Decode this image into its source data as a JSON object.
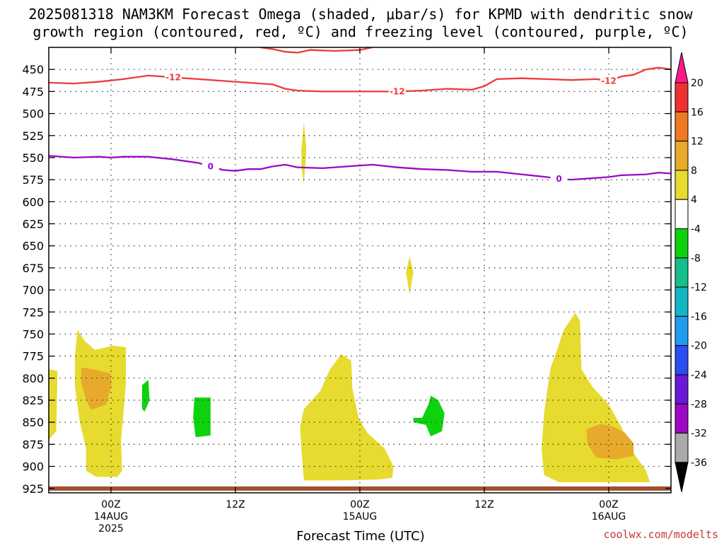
{
  "title_line1": "2025081318 NAM3KM Forecast Omega (shaded, μbar/s) for KPMD with dendritic snow",
  "title_line2": "growth region (contoured, red, ºC) and freezing level (contoured, purple, ºC)",
  "credit": "coolwx.com/modelts",
  "chart_data": {
    "type": "area",
    "xlabel": "Forecast Time (UTC)",
    "ylabel": "",
    "x_range_hours": [
      -5,
      45
    ],
    "y_range_hpa": [
      425,
      930
    ],
    "y_ticks": [
      450,
      475,
      500,
      525,
      550,
      575,
      600,
      625,
      650,
      675,
      700,
      725,
      750,
      775,
      800,
      825,
      850,
      875,
      900,
      925
    ],
    "x_ticks": [
      {
        "hour": 0,
        "line1": "00Z",
        "line2": "14AUG",
        "line3": "2025"
      },
      {
        "hour": 10,
        "line1": "12Z",
        "line2": "",
        "line3": ""
      },
      {
        "hour": 20,
        "line1": "00Z",
        "line2": "15AUG",
        "line3": ""
      },
      {
        "hour": 30,
        "line1": "12Z",
        "line2": "",
        "line3": ""
      },
      {
        "hour": 40,
        "line1": "00Z",
        "line2": "16AUG",
        "line3": ""
      }
    ],
    "grid": true,
    "colorbar": {
      "levels": [
        "20",
        "16",
        "12",
        "8",
        "4",
        "-4",
        "-8",
        "-12",
        "-16",
        "-20",
        "-24",
        "-28",
        "-32",
        "-36"
      ],
      "colors": [
        "#ff1a8c",
        "#ee3030",
        "#ee7a22",
        "#e8aa2a",
        "#e6db2e",
        "#ffffff",
        "#0fd20f",
        "#14bf8a",
        "#15b6c4",
        "#1f9bf0",
        "#2a4ef0",
        "#6a18d8",
        "#9b09c4",
        "#aaaaaa",
        "#000000"
      ]
    },
    "contours": [
      {
        "name": "-12",
        "color": "#ee3a3a",
        "labels": [
          "-12",
          "-12",
          "-12"
        ],
        "points": [
          [
            -5,
            465
          ],
          [
            -3,
            466
          ],
          [
            -1,
            464
          ],
          [
            1,
            461
          ],
          [
            3,
            457
          ],
          [
            5,
            459
          ],
          [
            7,
            461
          ],
          [
            9,
            463
          ],
          [
            11,
            465
          ],
          [
            13,
            467
          ],
          [
            14,
            472
          ],
          [
            15,
            474
          ],
          [
            17,
            475
          ],
          [
            19,
            475
          ],
          [
            21,
            475
          ],
          [
            23,
            475
          ],
          [
            25,
            474
          ],
          [
            27,
            472
          ],
          [
            29,
            473
          ],
          [
            30,
            469
          ],
          [
            31,
            461
          ],
          [
            33,
            460
          ],
          [
            35,
            461
          ],
          [
            37,
            462
          ],
          [
            39,
            461
          ],
          [
            40,
            463
          ],
          [
            41,
            458
          ],
          [
            42,
            456
          ],
          [
            43,
            450
          ],
          [
            44,
            448
          ],
          [
            45,
            450
          ]
        ]
      },
      {
        "name": "-12 upper",
        "color": "#ee3a3a",
        "labels": [],
        "points": [
          [
            12,
            425
          ],
          [
            13,
            427
          ],
          [
            14,
            430
          ],
          [
            15,
            431
          ],
          [
            16,
            428
          ],
          [
            18,
            429
          ],
          [
            20,
            428
          ],
          [
            21,
            425
          ]
        ]
      },
      {
        "name": "0",
        "color": "#9b09c4",
        "labels": [
          "0",
          "0"
        ],
        "points": [
          [
            -5,
            548
          ],
          [
            -3,
            550
          ],
          [
            -1,
            549
          ],
          [
            0,
            550
          ],
          [
            1,
            549
          ],
          [
            2,
            549
          ],
          [
            3,
            549
          ],
          [
            5,
            552
          ],
          [
            7,
            556
          ],
          [
            8,
            560
          ],
          [
            9,
            564
          ],
          [
            10,
            565
          ],
          [
            11,
            563
          ],
          [
            12,
            563
          ],
          [
            13,
            560
          ],
          [
            14,
            558
          ],
          [
            15,
            561
          ],
          [
            17,
            562
          ],
          [
            19,
            560
          ],
          [
            21,
            558
          ],
          [
            23,
            561
          ],
          [
            25,
            563
          ],
          [
            27,
            564
          ],
          [
            29,
            566
          ],
          [
            31,
            566
          ],
          [
            33,
            569
          ],
          [
            35,
            572
          ],
          [
            36,
            574
          ],
          [
            37,
            575
          ],
          [
            38,
            574
          ],
          [
            39,
            573
          ],
          [
            40,
            572
          ],
          [
            41,
            570
          ],
          [
            43,
            569
          ],
          [
            44,
            567
          ],
          [
            45,
            568
          ]
        ]
      }
    ],
    "shaded_regions": [
      {
        "value_range": "4 to 8",
        "color": "#e6db2e",
        "points": [
          [
            -5,
            790
          ],
          [
            -4.3,
            792
          ],
          [
            -4.4,
            860
          ],
          [
            -5,
            870
          ]
        ]
      },
      {
        "value_range": "4 to 8",
        "color": "#e6db2e",
        "points": [
          [
            -2.7,
            745
          ],
          [
            -2.1,
            758
          ],
          [
            -1.3,
            768
          ],
          [
            0.2,
            763
          ],
          [
            1.2,
            765
          ],
          [
            1.2,
            805
          ],
          [
            1.0,
            840
          ],
          [
            0.8,
            870
          ],
          [
            0.9,
            905
          ],
          [
            0.5,
            912
          ],
          [
            -1.2,
            912
          ],
          [
            -2.0,
            905
          ],
          [
            -2.0,
            880
          ],
          [
            -2.5,
            850
          ],
          [
            -2.9,
            810
          ],
          [
            -2.9,
            775
          ]
        ]
      },
      {
        "value_range": "8 to 12",
        "color": "#e8aa2a",
        "points": [
          [
            -2.4,
            788
          ],
          [
            -1.4,
            790
          ],
          [
            0,
            795
          ],
          [
            0,
            810
          ],
          [
            -0.4,
            830
          ],
          [
            -1.6,
            836
          ],
          [
            -2.0,
            825
          ],
          [
            -2.4,
            805
          ]
        ]
      },
      {
        "value_range": "4 to 8",
        "color": "#e6db2e",
        "points": [
          [
            15.5,
            835
          ],
          [
            16.8,
            815
          ],
          [
            17.6,
            790
          ],
          [
            18.5,
            773
          ],
          [
            19.3,
            780
          ],
          [
            19.4,
            812
          ],
          [
            19.9,
            845
          ],
          [
            20.6,
            862
          ],
          [
            22.0,
            880
          ],
          [
            22.7,
            900
          ],
          [
            22.6,
            913
          ],
          [
            21.5,
            915
          ],
          [
            18.0,
            916
          ],
          [
            15.5,
            916
          ],
          [
            15.3,
            880
          ],
          [
            15.2,
            855
          ]
        ]
      },
      {
        "value_range": "4 to 8",
        "color": "#e6db2e",
        "points": [
          [
            34.8,
            840
          ],
          [
            35.3,
            790
          ],
          [
            36.4,
            745
          ],
          [
            37.3,
            726
          ],
          [
            37.7,
            735
          ],
          [
            37.8,
            790
          ],
          [
            38.7,
            810
          ],
          [
            40,
            830
          ],
          [
            41,
            855
          ],
          [
            42,
            885
          ],
          [
            43,
            905
          ],
          [
            43.3,
            918
          ],
          [
            41,
            918
          ],
          [
            38,
            918
          ],
          [
            36,
            918
          ],
          [
            34.8,
            910
          ],
          [
            34.6,
            880
          ]
        ]
      },
      {
        "value_range": "8 to 12",
        "color": "#e8aa2a",
        "points": [
          [
            38.2,
            858
          ],
          [
            39.3,
            852
          ],
          [
            40.4,
            855
          ],
          [
            41.3,
            862
          ],
          [
            42.0,
            874
          ],
          [
            42.0,
            888
          ],
          [
            40.6,
            892
          ],
          [
            39.0,
            890
          ],
          [
            38.3,
            875
          ]
        ]
      },
      {
        "value_range": "-8 to -4",
        "color": "#0fd20f",
        "points": [
          [
            2.5,
            808
          ],
          [
            3.0,
            802
          ],
          [
            3.1,
            825
          ],
          [
            2.7,
            838
          ],
          [
            2.5,
            835
          ]
        ]
      },
      {
        "value_range": "-8 to -4",
        "color": "#0fd20f",
        "points": [
          [
            6.7,
            822
          ],
          [
            8.0,
            822
          ],
          [
            8.0,
            865
          ],
          [
            6.8,
            867
          ],
          [
            6.6,
            845
          ]
        ]
      },
      {
        "value_range": "-8 to -4",
        "color": "#0fd20f",
        "points": [
          [
            24.3,
            845
          ],
          [
            25,
            845
          ],
          [
            25.5,
            830
          ],
          [
            25.7,
            820
          ],
          [
            26.3,
            825
          ],
          [
            26.8,
            840
          ],
          [
            26.6,
            860
          ],
          [
            25.7,
            866
          ],
          [
            25.3,
            853
          ],
          [
            24.3,
            850
          ]
        ]
      },
      {
        "value_range": "4 to 8",
        "color": "#e6db2e",
        "points": [
          [
            15.5,
            510
          ],
          [
            15.7,
            540
          ],
          [
            15.6,
            560
          ],
          [
            15.5,
            580
          ],
          [
            15.3,
            560
          ],
          [
            15.3,
            540
          ]
        ]
      },
      {
        "value_range": "4 to 8",
        "color": "#e6db2e",
        "points": [
          [
            24.0,
            662
          ],
          [
            24.3,
            680
          ],
          [
            24.0,
            705
          ],
          [
            23.7,
            680
          ]
        ]
      }
    ],
    "ground_level_hpa": 925
  }
}
